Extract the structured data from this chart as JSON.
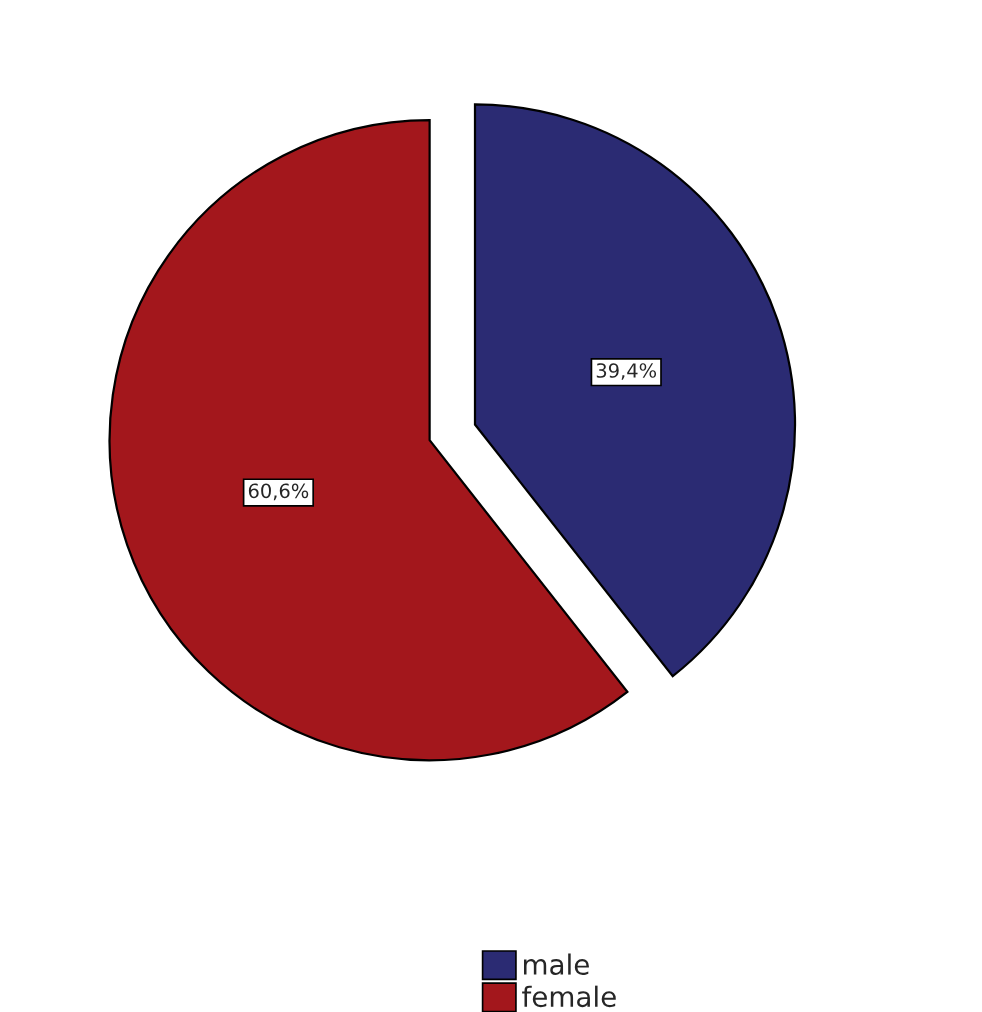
{
  "chart_data": {
    "type": "pie",
    "categories": [
      "male",
      "female"
    ],
    "values": [
      39.4,
      60.6
    ],
    "colors": [
      "#2b2b73",
      "#a3171c"
    ],
    "value_labels": [
      "39,4%",
      "60,6%"
    ],
    "legend": "bottom"
  }
}
